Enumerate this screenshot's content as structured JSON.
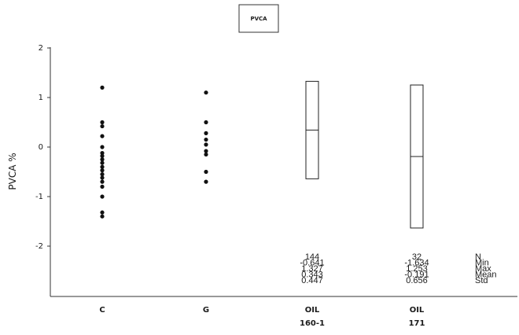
{
  "chart_data": {
    "type": "scatter",
    "title": "PVCA",
    "ylabel": "PVCA %",
    "xlabel": "",
    "ylim": [
      -3,
      2
    ],
    "yticks": [
      {
        "value": 2,
        "label": "2"
      },
      {
        "value": 1,
        "label": "1"
      },
      {
        "value": 0,
        "label": "0"
      },
      {
        "value": -1,
        "label": "-1"
      },
      {
        "value": -2,
        "label": "-2"
      }
    ],
    "categories": [
      {
        "key": "C",
        "label": "C",
        "sublabel": ""
      },
      {
        "key": "G",
        "label": "G",
        "sublabel": ""
      },
      {
        "key": "OIL160",
        "label": "OIL",
        "sublabel": "160-1"
      },
      {
        "key": "OIL171",
        "label": "OIL",
        "sublabel": "171"
      }
    ],
    "points": {
      "C": [
        1.2,
        0.5,
        0.42,
        0.22,
        0.0,
        -0.12,
        -0.18,
        -0.25,
        -0.32,
        -0.4,
        -0.47,
        -0.55,
        -0.62,
        -0.7,
        -0.8,
        -1.0,
        -1.32,
        -1.4
      ],
      "G": [
        1.1,
        0.5,
        0.28,
        0.15,
        0.05,
        -0.08,
        -0.15,
        -0.5,
        -0.7
      ]
    },
    "ranges": [
      {
        "category": "OIL160",
        "min": -0.641,
        "max": 1.327,
        "mean": 0.343
      },
      {
        "category": "OIL171",
        "min": -1.634,
        "max": 1.253,
        "mean": -0.191
      }
    ],
    "stats_labels": [
      "N",
      "Min",
      "Max",
      "Mean",
      "Std"
    ],
    "stats": [
      {
        "category": "OIL160",
        "values": [
          "144",
          "-0.641",
          "1.327",
          "0.343",
          "0.447"
        ]
      },
      {
        "category": "OIL171",
        "values": [
          "32",
          "-1.634",
          "1.253",
          "-0.191",
          "0.656"
        ]
      }
    ]
  }
}
